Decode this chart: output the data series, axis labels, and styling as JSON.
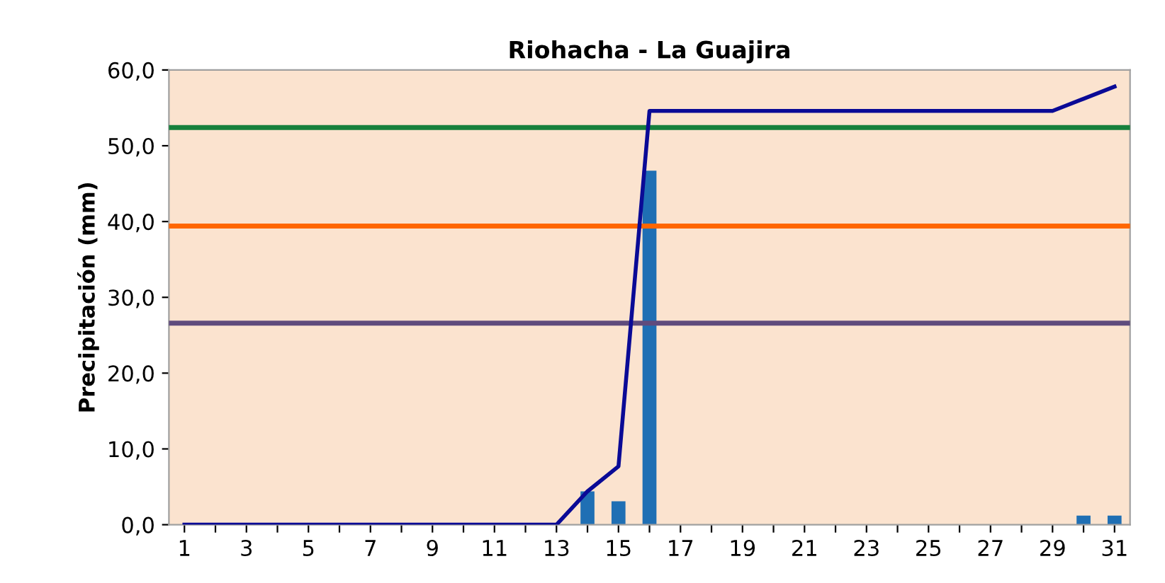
{
  "chart_data": {
    "type": "bar",
    "title": "Riohacha - La Guajira",
    "ylabel": "Precipitación (mm)",
    "categories": [
      "1",
      null,
      "3",
      null,
      "5",
      null,
      "7",
      null,
      "9",
      null,
      "11",
      null,
      "13",
      null,
      "15",
      null,
      "17",
      null,
      "19",
      null,
      "21",
      null,
      "23",
      null,
      "25",
      null,
      "27",
      null,
      "29",
      null,
      "31"
    ],
    "series": [
      {
        "color": "#1f6fb4",
        "values": [
          0,
          0,
          0,
          0,
          0,
          0,
          0,
          0,
          0,
          0,
          0,
          0,
          0,
          4.4,
          3.1,
          46.7,
          0,
          0,
          0,
          0,
          0,
          0,
          0,
          0,
          0,
          0,
          0,
          0,
          0,
          1.2,
          1.2
        ]
      },
      {
        "type": "line",
        "color": "#0a0a96",
        "values": [
          0,
          0,
          0,
          0,
          0,
          0,
          0,
          0,
          0,
          0,
          0,
          0,
          0,
          4.4,
          7.7,
          54.6,
          54.6,
          54.6,
          54.6,
          54.6,
          54.6,
          54.6,
          54.6,
          54.6,
          54.6,
          54.6,
          54.6,
          54.6,
          54.6,
          56.2,
          57.8
        ]
      }
    ],
    "ref_lines": [
      {
        "axis": "y",
        "value": 52.4,
        "color": "#16803c"
      },
      {
        "axis": "y",
        "value": 39.4,
        "color": "#ff6600"
      },
      {
        "axis": "y",
        "value": 26.6,
        "color": "#5f4b7d"
      }
    ],
    "ylim": [
      0,
      60
    ],
    "yticks": [
      {
        "value": 0,
        "label": "0,0"
      },
      {
        "value": 10,
        "label": "10,0"
      },
      {
        "value": 20,
        "label": "20,0"
      },
      {
        "value": 30,
        "label": "30,0"
      },
      {
        "value": 40,
        "label": "40,0"
      },
      {
        "value": 50,
        "label": "50,0"
      },
      {
        "value": 60,
        "label": "60,0"
      }
    ],
    "grid": false
  }
}
